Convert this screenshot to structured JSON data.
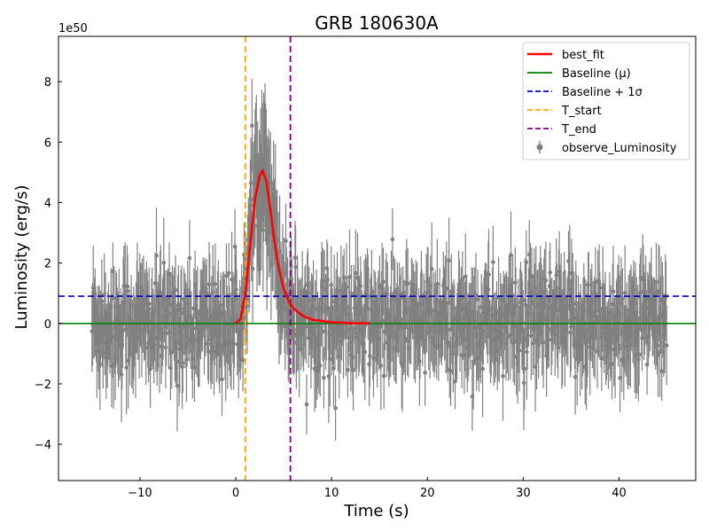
{
  "chart_data": {
    "type": "line",
    "title": "GRB 180630A",
    "xlabel": "Time (s)",
    "ylabel": "Luminosity (erg/s)",
    "y_scale_label": "1e50",
    "y_scale": 1e+50,
    "xlim": [
      -18.5,
      48
    ],
    "ylim": [
      -5.2,
      9.5
    ],
    "x_ticks": [
      -10,
      0,
      10,
      20,
      30,
      40
    ],
    "x_tick_labels": [
      "−10",
      "0",
      "10",
      "20",
      "30",
      "40"
    ],
    "y_ticks": [
      -4,
      -2,
      0,
      2,
      4,
      6,
      8
    ],
    "y_tick_labels": [
      "−4",
      "−2",
      "0",
      "2",
      "4",
      "6",
      "8"
    ],
    "grid": false,
    "legend_position": "top-right",
    "observations": {
      "name": "observe_Luminosity",
      "color": "#808080",
      "x_range": [
        -15,
        45
      ],
      "noise_level": 1.0,
      "pulse_peak": 5.2,
      "pulse_time": 2.8
    },
    "series": [
      {
        "name": "best_fit",
        "color": "#ff0000",
        "style": "solid",
        "peak_x": 2.8,
        "peak_y": 5.05,
        "x": [
          0.0,
          0.5,
          1.0,
          1.5,
          2.0,
          2.5,
          2.8,
          3.2,
          3.6,
          4.0,
          4.5,
          5.0,
          5.5,
          6.0,
          7.0,
          8.0,
          10.0,
          12.0,
          14.0
        ],
        "values": [
          0.0,
          0.15,
          1.0,
          2.6,
          4.1,
          4.9,
          5.05,
          4.7,
          3.8,
          2.8,
          1.8,
          1.15,
          0.75,
          0.5,
          0.25,
          0.12,
          0.04,
          0.01,
          0.0
        ]
      },
      {
        "name": "Baseline (μ)",
        "color": "#008000",
        "style": "solid",
        "y": 0.0
      },
      {
        "name": "Baseline + 1σ",
        "color": "#0000cc",
        "style": "dashed",
        "y": 0.9
      },
      {
        "name": "T_start",
        "color": "#ffa500",
        "style": "dashed",
        "x": 1.0
      },
      {
        "name": "T_end",
        "color": "#800080",
        "style": "dashed",
        "x": 5.7
      }
    ],
    "legend": [
      {
        "label": "best_fit",
        "color": "#ff0000",
        "kind": "line"
      },
      {
        "label": "Baseline (μ)",
        "color": "#008000",
        "kind": "line"
      },
      {
        "label": "Baseline + 1σ",
        "color": "#0000cc",
        "kind": "dashed"
      },
      {
        "label": "T_start",
        "color": "#ffa500",
        "kind": "dashed"
      },
      {
        "label": "T_end",
        "color": "#800080",
        "kind": "dashed"
      },
      {
        "label": "observe_Luminosity",
        "color": "#808080",
        "kind": "errorbar"
      }
    ]
  }
}
